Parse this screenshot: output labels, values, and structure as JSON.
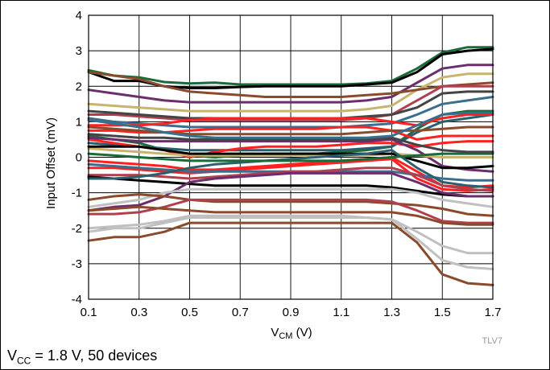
{
  "chart_data": {
    "type": "line",
    "title": "",
    "ylabel": "Input Offset (mV)",
    "xlabel": {
      "main": "V",
      "sub": "CM",
      "unit": " (V)"
    },
    "xlim": [
      0.1,
      1.7
    ],
    "ylim": [
      -4,
      4
    ],
    "x_ticks": [
      "0.1",
      "0.3",
      "0.5",
      "0.7",
      "0.9",
      "1.1",
      "1.3",
      "1.5",
      "1.7"
    ],
    "y_ticks": [
      "4",
      "3",
      "2",
      "1",
      "0",
      "-1",
      "-2",
      "-3",
      "-4"
    ],
    "grid": true,
    "x": [
      0.1,
      0.2,
      0.3,
      0.4,
      0.5,
      0.6,
      0.7,
      0.8,
      0.9,
      1.0,
      1.1,
      1.2,
      1.3,
      1.4,
      1.5,
      1.6,
      1.7
    ],
    "series": [
      {
        "color": "#1b6b3a",
        "values": [
          2.45,
          2.3,
          2.25,
          2.12,
          2.08,
          2.1,
          2.05,
          2.05,
          2.05,
          2.05,
          2.05,
          2.08,
          2.15,
          2.5,
          2.95,
          3.1,
          3.1
        ]
      },
      {
        "color": "#000000",
        "values": [
          2.4,
          2.15,
          2.15,
          2.0,
          1.95,
          1.95,
          1.98,
          2.0,
          2.0,
          2.0,
          2.0,
          2.05,
          2.1,
          2.4,
          2.9,
          3.0,
          3.05
        ]
      },
      {
        "color": "#6b2d6b",
        "values": [
          1.9,
          1.8,
          1.7,
          1.6,
          1.55,
          1.55,
          1.55,
          1.55,
          1.55,
          1.55,
          1.55,
          1.6,
          1.7,
          2.1,
          2.5,
          2.6,
          2.6
        ]
      },
      {
        "color": "#c8b46e",
        "values": [
          1.5,
          1.45,
          1.4,
          1.35,
          1.3,
          1.3,
          1.3,
          1.3,
          1.3,
          1.3,
          1.3,
          1.35,
          1.45,
          1.9,
          2.25,
          2.35,
          2.35
        ]
      },
      {
        "color": "#8b4a2b",
        "values": [
          2.4,
          2.3,
          2.2,
          2.0,
          1.85,
          1.8,
          1.75,
          1.7,
          1.7,
          1.7,
          1.7,
          1.75,
          1.8,
          1.9,
          2.0,
          2.05,
          2.1
        ]
      },
      {
        "color": "#b04050",
        "values": [
          1.2,
          1.2,
          1.15,
          1.1,
          1.05,
          1.05,
          1.05,
          1.05,
          1.05,
          1.05,
          1.05,
          1.1,
          1.2,
          1.6,
          2.0,
          2.0,
          2.0
        ]
      },
      {
        "color": "#444444",
        "values": [
          1.3,
          1.25,
          1.2,
          1.15,
          1.1,
          1.1,
          1.1,
          1.1,
          1.1,
          1.1,
          1.1,
          1.15,
          1.2,
          1.4,
          1.8,
          1.85,
          1.85
        ]
      },
      {
        "color": "#3a6e8f",
        "values": [
          1.1,
          1.0,
          0.95,
          0.9,
          0.85,
          0.85,
          0.85,
          0.85,
          0.85,
          0.85,
          0.85,
          0.9,
          0.95,
          1.2,
          1.5,
          1.6,
          1.7
        ]
      },
      {
        "color": "#1b6b3a",
        "values": [
          0.6,
          0.5,
          0.4,
          0.2,
          0.05,
          0.0,
          0.05,
          0.1,
          0.1,
          0.1,
          0.15,
          0.2,
          0.3,
          0.8,
          1.2,
          1.3,
          1.3
        ]
      },
      {
        "color": "#2c5f6e",
        "values": [
          0.4,
          0.35,
          0.3,
          0.25,
          0.2,
          0.2,
          0.2,
          0.2,
          0.2,
          0.2,
          0.2,
          0.25,
          0.3,
          0.7,
          1.0,
          1.1,
          1.2
        ]
      },
      {
        "color": "#ff2020",
        "values": [
          0.9,
          0.9,
          0.9,
          0.95,
          1.05,
          1.1,
          1.1,
          1.1,
          1.1,
          1.1,
          1.1,
          1.1,
          1.0,
          0.9,
          1.1,
          1.2,
          1.2
        ]
      },
      {
        "color": "#ff2020",
        "values": [
          0.75,
          0.75,
          0.7,
          0.7,
          0.75,
          0.8,
          0.8,
          0.8,
          0.8,
          0.8,
          0.85,
          0.85,
          0.75,
          0.5,
          0.6,
          0.6,
          0.6
        ]
      },
      {
        "color": "#ff2020",
        "values": [
          0.5,
          0.4,
          0.3,
          0.2,
          0.0,
          0.15,
          0.25,
          0.3,
          0.3,
          0.3,
          0.35,
          0.4,
          0.4,
          0.3,
          0.4,
          0.45,
          0.45
        ]
      },
      {
        "color": "#ff2020",
        "values": [
          -0.1,
          -0.15,
          -0.2,
          -0.25,
          -0.35,
          -0.35,
          -0.3,
          -0.25,
          -0.2,
          -0.15,
          -0.1,
          -0.05,
          0.0,
          -0.4,
          -0.8,
          -0.85,
          -0.8
        ]
      },
      {
        "color": "#ff2020",
        "values": [
          -0.3,
          -0.3,
          -0.35,
          -0.4,
          -0.45,
          -0.4,
          -0.35,
          -0.3,
          -0.25,
          -0.2,
          -0.15,
          -0.1,
          -0.05,
          -0.6,
          -0.9,
          -0.95,
          -0.9
        ]
      },
      {
        "color": "#8b4a2b",
        "values": [
          0.85,
          0.8,
          0.75,
          0.7,
          0.65,
          0.65,
          0.65,
          0.65,
          0.65,
          0.65,
          0.65,
          0.7,
          0.75,
          0.75,
          0.8,
          0.85,
          0.85
        ]
      },
      {
        "color": "#6b2d6b",
        "values": [
          0.55,
          0.5,
          0.45,
          0.45,
          0.45,
          0.45,
          0.45,
          0.45,
          0.45,
          0.45,
          0.45,
          0.45,
          0.5,
          0.2,
          -0.25,
          -0.35,
          -0.4
        ]
      },
      {
        "color": "#c8b46e",
        "values": [
          0.25,
          0.2,
          0.15,
          0.1,
          0.05,
          0.05,
          0.05,
          0.05,
          0.05,
          0.05,
          0.05,
          0.05,
          0.1,
          0.05,
          0.0,
          0.0,
          0.0
        ]
      },
      {
        "color": "#000000",
        "values": [
          0.3,
          0.3,
          0.3,
          0.2,
          0.1,
          0.1,
          0.1,
          0.1,
          0.1,
          0.1,
          0.1,
          0.1,
          0.1,
          -0.1,
          -0.3,
          -0.3,
          -0.25
        ]
      },
      {
        "color": "#3a6e8f",
        "values": [
          -0.2,
          -0.25,
          -0.3,
          -0.35,
          -0.4,
          -0.4,
          -0.4,
          -0.4,
          -0.4,
          -0.4,
          -0.4,
          -0.4,
          -0.4,
          -0.5,
          -0.6,
          -0.65,
          -0.65
        ]
      },
      {
        "color": "#b04050",
        "values": [
          -0.5,
          -0.5,
          -0.5,
          -0.55,
          -0.6,
          -0.55,
          -0.5,
          -0.45,
          -0.4,
          -0.4,
          -0.35,
          -0.3,
          -0.3,
          -0.5,
          -0.8,
          -0.9,
          -0.95
        ]
      },
      {
        "color": "#000000",
        "values": [
          -0.55,
          -0.6,
          -0.65,
          -0.7,
          -0.75,
          -0.8,
          -0.8,
          -0.8,
          -0.8,
          -0.8,
          -0.8,
          -0.8,
          -0.85,
          -0.95,
          -1.05,
          -1.1,
          -1.1
        ]
      },
      {
        "color": "#2c5f6e",
        "values": [
          -0.6,
          -0.6,
          -0.55,
          -0.45,
          -0.3,
          -0.2,
          -0.15,
          -0.1,
          -0.05,
          0.0,
          0.05,
          0.1,
          0.2,
          -0.3,
          -0.7,
          -0.8,
          -0.85
        ]
      },
      {
        "color": "#6b2d6b",
        "values": [
          -1.5,
          -1.4,
          -1.35,
          -1.1,
          -0.7,
          -0.6,
          -0.55,
          -0.5,
          -0.45,
          -0.45,
          -0.45,
          -0.45,
          -0.45,
          -0.7,
          -1.0,
          -1.1,
          -1.1
        ]
      },
      {
        "color": "#c0c0c0",
        "values": [
          -1.4,
          -1.3,
          -1.2,
          -1.0,
          -0.9,
          -0.9,
          -0.9,
          -0.9,
          -0.9,
          -0.9,
          -0.9,
          -0.9,
          -0.9,
          -1.0,
          -1.2,
          -1.3,
          -1.4
        ]
      },
      {
        "color": "#8b4a2b",
        "values": [
          -1.2,
          -1.1,
          -1.05,
          -1.1,
          -1.2,
          -1.25,
          -1.25,
          -1.25,
          -1.25,
          -1.25,
          -1.25,
          -1.25,
          -1.3,
          -1.35,
          -1.45,
          -1.6,
          -1.65
        ]
      },
      {
        "color": "#b04050",
        "values": [
          -1.6,
          -1.6,
          -1.55,
          -1.4,
          -1.2,
          -1.2,
          -1.2,
          -1.2,
          -1.2,
          -1.2,
          -1.2,
          -1.2,
          -1.25,
          -1.5,
          -1.8,
          -1.85,
          -1.85
        ]
      },
      {
        "color": "#8b4a2b",
        "values": [
          -1.5,
          -1.45,
          -1.4,
          -1.45,
          -1.5,
          -1.55,
          -1.55,
          -1.55,
          -1.55,
          -1.55,
          -1.55,
          -1.55,
          -1.55,
          -1.65,
          -1.85,
          -1.9,
          -1.9
        ]
      },
      {
        "color": "#c0c0c0",
        "values": [
          -2.1,
          -2.0,
          -2.0,
          -1.85,
          -1.7,
          -1.7,
          -1.7,
          -1.7,
          -1.7,
          -1.7,
          -1.7,
          -1.7,
          -1.75,
          -2.1,
          -2.5,
          -2.7,
          -2.7
        ]
      },
      {
        "color": "#c0c0c0",
        "values": [
          -2.0,
          -1.95,
          -1.9,
          -1.8,
          -1.65,
          -1.65,
          -1.65,
          -1.65,
          -1.65,
          -1.65,
          -1.65,
          -1.7,
          -1.75,
          -2.3,
          -2.9,
          -3.1,
          -3.15
        ]
      },
      {
        "color": "#8b4a2b",
        "values": [
          -2.35,
          -2.25,
          -2.25,
          -2.1,
          -1.85,
          -1.85,
          -1.85,
          -1.85,
          -1.85,
          -1.85,
          -1.85,
          -1.85,
          -1.85,
          -2.4,
          -3.3,
          -3.55,
          -3.6
        ]
      },
      {
        "color": "#1b6b3a",
        "values": [
          0.1,
          0.05,
          0.0,
          -0.05,
          -0.1,
          -0.1,
          -0.1,
          -0.1,
          -0.1,
          -0.1,
          -0.1,
          -0.05,
          0.0,
          0.05,
          0.1,
          0.1,
          0.1
        ]
      },
      {
        "color": "#444444",
        "values": [
          0.65,
          0.6,
          0.55,
          0.55,
          0.5,
          0.5,
          0.5,
          0.5,
          0.5,
          0.5,
          0.5,
          0.5,
          0.55,
          0.35,
          0.2,
          0.15,
          0.15
        ]
      },
      {
        "color": "#3a6e8f",
        "values": [
          1.05,
          0.95,
          0.85,
          0.7,
          0.6,
          0.55,
          0.55,
          0.55,
          0.55,
          0.55,
          0.55,
          0.55,
          0.6,
          0.9,
          1.2,
          1.25,
          1.25
        ]
      }
    ]
  },
  "chart_code": "TLV7",
  "caption": {
    "prefix": "V",
    "sub": "CC",
    "suffix": " = 1.8 V, 50 devices"
  }
}
